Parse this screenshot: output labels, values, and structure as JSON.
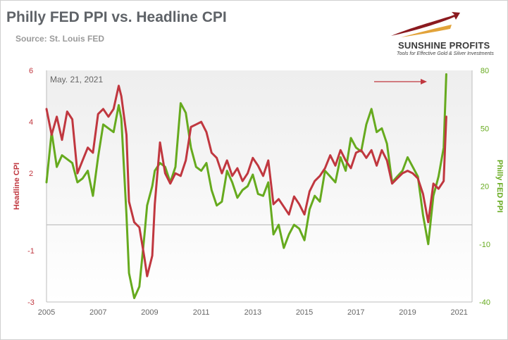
{
  "header": {
    "title": "Philly FED PPI vs. Headline CPI",
    "source": "Source: St. Louis FED"
  },
  "logo": {
    "name": "SUNSHINE PROFITS",
    "tagline": "Tools for Effective Gold & Silver Investments"
  },
  "colors": {
    "cpi": "#c0373f",
    "ppi": "#66aa1e",
    "plot_bg_top": "#eeeeee",
    "plot_bg_bottom": "#ffffff"
  },
  "chart_data": {
    "type": "line",
    "title": "Philly FED PPI vs. Headline CPI",
    "annotation": "May. 21, 2021",
    "arrow_annotation": "right-pointing arrow near 2020 highlighting recent surge",
    "grid": false,
    "reference_line": 0,
    "x_ticks": [
      "2005",
      "2007",
      "2009",
      "2011",
      "2013",
      "2015",
      "2017",
      "2019",
      "2021"
    ],
    "xlim": [
      2005,
      2021.5
    ],
    "y_left": {
      "label": "Headline CPI",
      "lim": [
        -3,
        6
      ],
      "ticks": [
        "6",
        "4",
        "2",
        "-1",
        "-3"
      ]
    },
    "y_right": {
      "label": "Philly FED PPI",
      "lim": [
        -40,
        80
      ],
      "ticks": [
        "80",
        "50",
        "20",
        "-10",
        "-40"
      ]
    },
    "series": [
      {
        "name": "Headline CPI",
        "axis": "left",
        "x": [
          2005.0,
          2005.2,
          2005.4,
          2005.6,
          2005.8,
          2006.0,
          2006.2,
          2006.4,
          2006.6,
          2006.8,
          2007.0,
          2007.2,
          2007.4,
          2007.6,
          2007.8,
          2007.9,
          2008.1,
          2008.2,
          2008.4,
          2008.6,
          2008.8,
          2008.9,
          2009.1,
          2009.2,
          2009.4,
          2009.6,
          2009.8,
          2010.0,
          2010.2,
          2010.4,
          2010.6,
          2010.8,
          2011.0,
          2011.2,
          2011.4,
          2011.6,
          2011.8,
          2012.0,
          2012.2,
          2012.4,
          2012.6,
          2012.8,
          2013.0,
          2013.2,
          2013.4,
          2013.6,
          2013.8,
          2014.0,
          2014.2,
          2014.4,
          2014.6,
          2014.8,
          2015.0,
          2015.2,
          2015.4,
          2015.6,
          2015.8,
          2016.0,
          2016.2,
          2016.4,
          2016.6,
          2016.8,
          2017.0,
          2017.2,
          2017.4,
          2017.6,
          2017.8,
          2018.0,
          2018.2,
          2018.4,
          2018.6,
          2018.8,
          2019.0,
          2019.2,
          2019.4,
          2019.6,
          2019.8,
          2020.0,
          2020.2,
          2020.4,
          2020.5
        ],
        "values": [
          4.5,
          3.5,
          4.2,
          3.3,
          4.4,
          4.1,
          2.0,
          2.5,
          3.0,
          2.8,
          4.3,
          4.5,
          4.2,
          4.5,
          5.4,
          5.0,
          3.5,
          0.9,
          0.1,
          -0.1,
          -1.3,
          -2.0,
          -1.2,
          0.8,
          3.2,
          2.0,
          1.6,
          2.0,
          1.9,
          2.5,
          3.8,
          3.9,
          4.0,
          3.6,
          2.8,
          2.6,
          2.0,
          2.5,
          1.9,
          2.2,
          1.7,
          2.0,
          2.6,
          2.3,
          1.9,
          2.5,
          0.8,
          1.0,
          0.7,
          0.4,
          1.1,
          0.8,
          0.4,
          1.3,
          1.7,
          1.9,
          2.2,
          2.7,
          2.3,
          2.9,
          2.5,
          2.2,
          2.8,
          2.9,
          2.6,
          2.9,
          2.3,
          2.9,
          2.5,
          1.6,
          1.8,
          2.0,
          2.1,
          2.0,
          1.8,
          1.2,
          0.1,
          1.6,
          1.4,
          1.7,
          4.2
        ]
      },
      {
        "name": "Philly FED PPI",
        "axis": "right",
        "x": [
          2005.0,
          2005.2,
          2005.4,
          2005.6,
          2005.8,
          2006.0,
          2006.2,
          2006.4,
          2006.6,
          2006.8,
          2007.0,
          2007.2,
          2007.4,
          2007.6,
          2007.8,
          2007.9,
          2008.1,
          2008.2,
          2008.4,
          2008.6,
          2008.8,
          2008.9,
          2009.1,
          2009.2,
          2009.4,
          2009.6,
          2009.8,
          2010.0,
          2010.2,
          2010.4,
          2010.6,
          2010.8,
          2011.0,
          2011.2,
          2011.4,
          2011.6,
          2011.8,
          2012.0,
          2012.2,
          2012.4,
          2012.6,
          2012.8,
          2013.0,
          2013.2,
          2013.4,
          2013.6,
          2013.8,
          2014.0,
          2014.2,
          2014.4,
          2014.6,
          2014.8,
          2015.0,
          2015.2,
          2015.4,
          2015.6,
          2015.8,
          2016.0,
          2016.2,
          2016.4,
          2016.6,
          2016.8,
          2017.0,
          2017.2,
          2017.4,
          2017.6,
          2017.8,
          2018.0,
          2018.2,
          2018.4,
          2018.6,
          2018.8,
          2019.0,
          2019.2,
          2019.4,
          2019.6,
          2019.8,
          2020.0,
          2020.2,
          2020.4,
          2020.5
        ],
        "values": [
          22,
          48,
          30,
          36,
          34,
          32,
          22,
          24,
          28,
          15,
          35,
          52,
          50,
          48,
          62,
          55,
          5,
          -25,
          -38,
          -32,
          -5,
          10,
          20,
          28,
          32,
          30,
          22,
          30,
          63,
          58,
          40,
          30,
          28,
          32,
          18,
          10,
          12,
          28,
          22,
          14,
          18,
          20,
          26,
          16,
          15,
          22,
          -5,
          0,
          -12,
          -5,
          0,
          -2,
          -8,
          8,
          15,
          12,
          28,
          25,
          22,
          35,
          28,
          45,
          40,
          38,
          52,
          60,
          48,
          50,
          42,
          22,
          25,
          28,
          35,
          30,
          25,
          5,
          -10,
          15,
          25,
          40,
          78
        ]
      }
    ]
  }
}
